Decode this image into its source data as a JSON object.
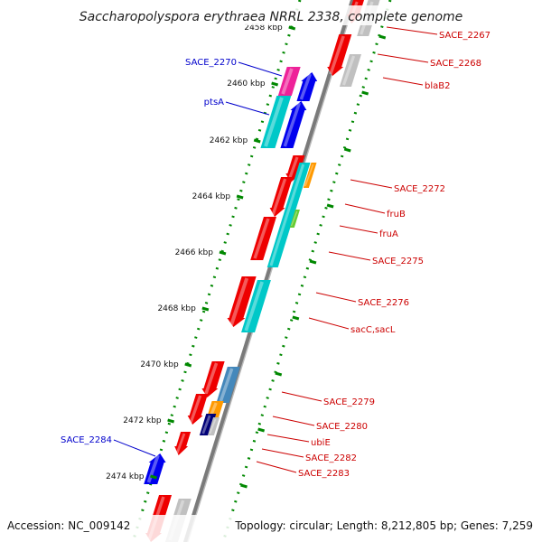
{
  "title": "Saccharopolyspora erythraea NRRL 2338, complete genome",
  "accession": "Accession: NC_009142",
  "summary": "Topology: circular; Length: 8,212,805 bp; Genes: 7,259",
  "colors": {
    "backbone": "#7a7a7a",
    "ring_dots": "#008800",
    "forward_label": "#cc0000",
    "reverse_label": "#0000cc",
    "gene_red": "#ee0000",
    "gene_cyan": "#00c8c8",
    "gene_blue": "#0000ee",
    "gene_magenta": "#ee2299",
    "gene_gray": "#c0c0c0",
    "gene_orange": "#ff9900",
    "gene_green": "#66cc33",
    "gene_steelblue": "#4488bb",
    "gene_navy": "#000077"
  },
  "ticks": [
    {
      "label": "2458 kbp"
    },
    {
      "label": "2460 kbp"
    },
    {
      "label": "2462 kbp"
    },
    {
      "label": "2464 kbp"
    },
    {
      "label": "2466 kbp"
    },
    {
      "label": "2468 kbp"
    },
    {
      "label": "2470 kbp"
    },
    {
      "label": "2472 kbp"
    },
    {
      "label": "2474 kbp"
    }
  ],
  "forward_labels": [
    {
      "text": "SACE_2267"
    },
    {
      "text": "SACE_2268"
    },
    {
      "text": "blaB2"
    },
    {
      "text": "SACE_2272"
    },
    {
      "text": "fruB"
    },
    {
      "text": "fruA"
    },
    {
      "text": "SACE_2275"
    },
    {
      "text": "SACE_2276"
    },
    {
      "text": "sacC,sacL"
    },
    {
      "text": "SACE_2279"
    },
    {
      "text": "SACE_2280"
    },
    {
      "text": "ubiE"
    },
    {
      "text": "SACE_2282"
    },
    {
      "text": "SACE_2283"
    }
  ],
  "reverse_labels": [
    {
      "text": "SACE_2270"
    },
    {
      "text": "ptsA"
    },
    {
      "text": "SACE_2284"
    }
  ]
}
